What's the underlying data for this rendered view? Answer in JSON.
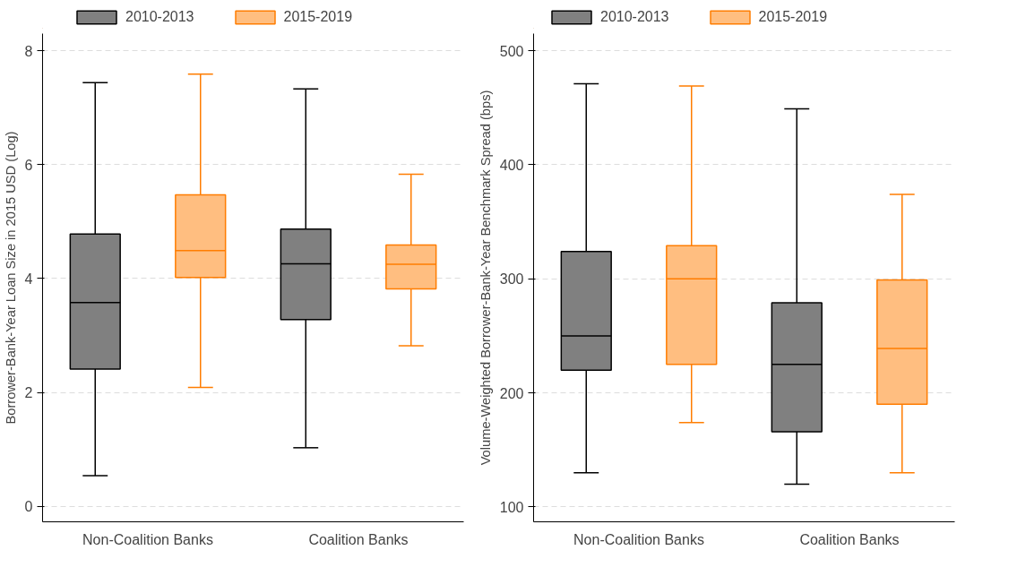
{
  "chart_data": [
    {
      "type": "box",
      "categories": [
        "Non-Coalition Banks",
        "Coalition Banks"
      ],
      "ylabel": "Borrower-Bank-Year Loan Size in 2015 USD (Log)",
      "ylim": [
        -0.27,
        8.3
      ],
      "yticks": [
        0,
        2,
        4,
        6,
        8
      ],
      "grid": "y",
      "legend": "top",
      "series": [
        {
          "name": "2010-2013",
          "color": "#808080",
          "boxes": [
            {
              "low": 0.54,
              "q1": 2.41,
              "median": 3.58,
              "q3": 4.78,
              "high": 7.44
            },
            {
              "low": 1.03,
              "q1": 3.28,
              "median": 4.26,
              "q3": 4.87,
              "high": 7.33
            }
          ]
        },
        {
          "name": "2015-2019",
          "color": "#ffbe80",
          "boxes": [
            {
              "low": 2.09,
              "q1": 4.02,
              "median": 4.49,
              "q3": 5.47,
              "high": 7.59
            },
            {
              "low": 2.82,
              "q1": 3.82,
              "median": 4.25,
              "q3": 4.59,
              "high": 5.83
            }
          ]
        }
      ]
    },
    {
      "type": "box",
      "categories": [
        "Non-Coalition Banks",
        "Coalition Banks"
      ],
      "ylabel": "Volume-Weighted Borrower-Bank-Year Benchmark Spread (bps)",
      "ylim": [
        87,
        515
      ],
      "yticks": [
        100,
        200,
        300,
        400,
        500
      ],
      "grid": "y",
      "legend": "top",
      "series": [
        {
          "name": "2010-2013",
          "color": "#808080",
          "boxes": [
            {
              "low": 130,
              "q1": 220,
              "median": 250,
              "q3": 324,
              "high": 471
            },
            {
              "low": 120,
              "q1": 166,
              "median": 225,
              "q3": 279,
              "high": 449
            }
          ]
        },
        {
          "name": "2015-2019",
          "color": "#ffbe80",
          "boxes": [
            {
              "low": 174,
              "q1": 225,
              "median": 300,
              "q3": 329,
              "high": 469
            },
            {
              "low": 130,
              "q1": 190,
              "median": 239,
              "q3": 299,
              "high": 374
            }
          ]
        }
      ]
    }
  ]
}
